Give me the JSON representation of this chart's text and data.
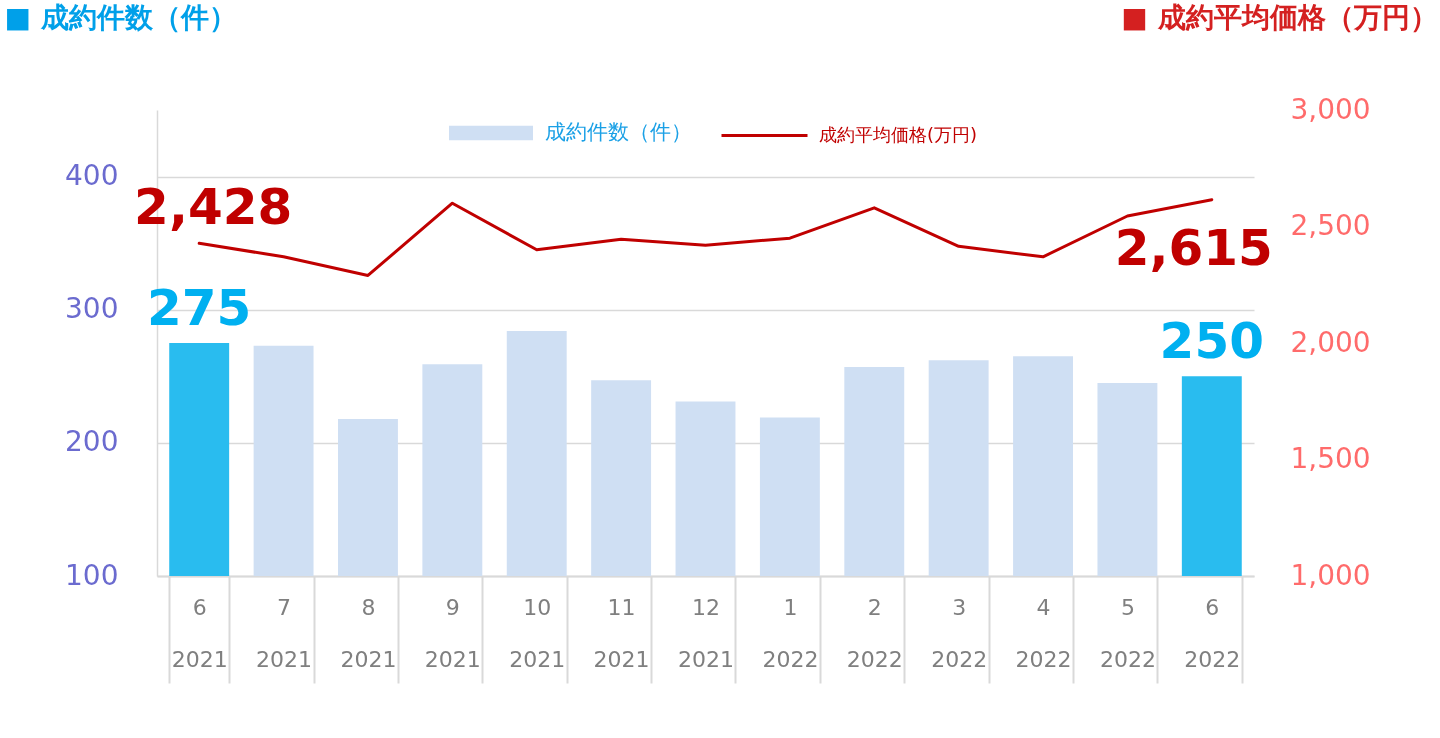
{
  "chart_data": {
    "type": "bar",
    "ylabel": "■ 成約件数（件）",
    "y2label": "■ 成約平均価格（万円）",
    "categories": [
      "6\n2021",
      "7\n2021",
      "8\n2021",
      "9\n2021",
      "10\n2021",
      "11\n2021",
      "12\n2021",
      "1\n2022",
      "2\n2022",
      "3\n2022",
      "4\n2022",
      "5\n2022",
      "6\n2022"
    ],
    "series": [
      {
        "name": "成約件数（件）",
        "color": "#cfdff3",
        "colors": [
          "#29bcef",
          "#cfdff3",
          "#cfdff3",
          "#cfdff3",
          "#cfdff3",
          "#cfdff3",
          "#cfdff3",
          "#cfdff3",
          "#cfdff3",
          "#cfdff3",
          "#cfdff3",
          "#cfdff3",
          "#29bcef"
        ],
        "values": [
          275,
          273,
          218,
          259,
          284,
          247,
          231,
          219,
          257,
          262,
          265,
          245,
          250
        ],
        "value_labels": [
          "275",
          null,
          null,
          null,
          null,
          null,
          null,
          null,
          null,
          null,
          null,
          null,
          "250"
        ]
      },
      {
        "name": "成約平均価格(万円)",
        "type": "line",
        "axis": "y2",
        "color": "#c00000",
        "values": [
          2428,
          2370,
          2290,
          2600,
          2400,
          2445,
          2420,
          2450,
          2580,
          2415,
          2370,
          2545,
          2615
        ],
        "value_labels": [
          "2,428",
          null,
          null,
          null,
          null,
          null,
          null,
          null,
          null,
          null,
          null,
          null,
          "2,615"
        ]
      }
    ],
    "ylim": [
      100,
      450
    ],
    "yticks": [
      100,
      200,
      300,
      400
    ],
    "y2lim": [
      1000,
      3000
    ],
    "y2ticks": [
      {
        "value": 1000,
        "label": "1,000"
      },
      {
        "value": 1500,
        "label": "1,500"
      },
      {
        "value": 2000,
        "label": "2,000"
      },
      {
        "value": 2500,
        "label": "2,500"
      },
      {
        "value": 3000,
        "label": "3,000"
      }
    ],
    "grid": "y",
    "legend": "top",
    "line_style": "solid"
  }
}
